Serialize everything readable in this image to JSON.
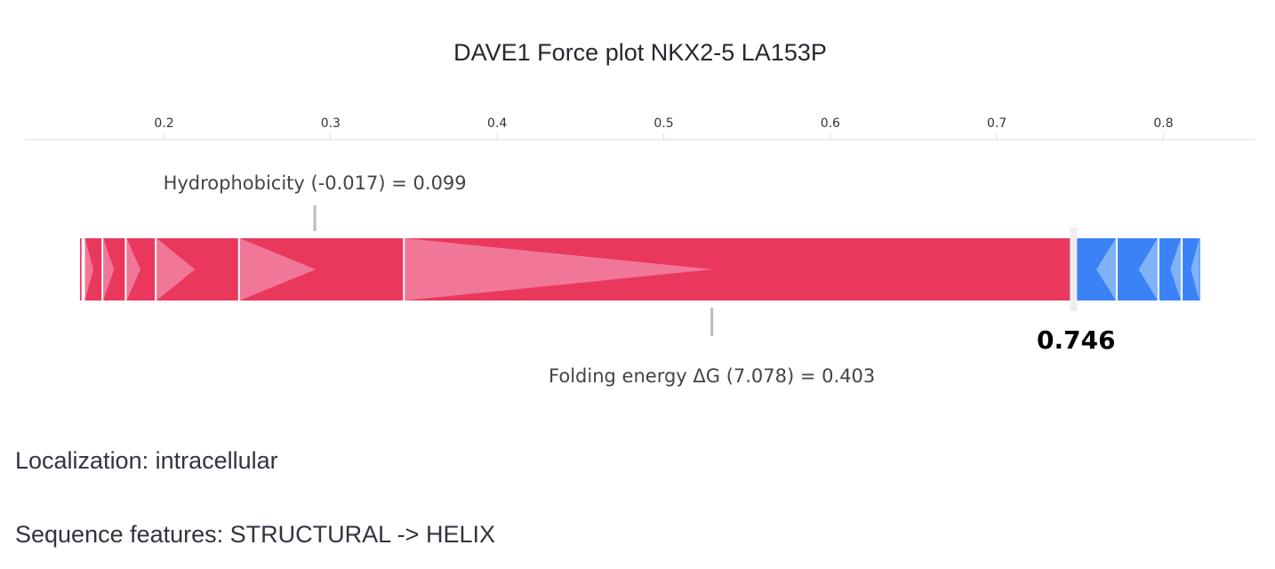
{
  "title": "DAVE1 Force plot NKX2-5 LA153P",
  "info": {
    "localization": "Localization: intracellular",
    "sequence_features": "Sequence features: STRUCTURAL -> HELIX"
  },
  "colors": {
    "positive": "#ea385d",
    "positive_arrow": "#f07798",
    "negative": "#3b82f6",
    "negative_arrow": "#7fb2f7",
    "axis": "#e6e6e6",
    "connector": "#bbbbbb"
  },
  "chart_data": {
    "type": "force",
    "title": "DAVE1 Force plot NKX2-5 LA153P",
    "xlim": [
      0.14,
      0.82
    ],
    "ticks": [
      0.2,
      0.3,
      0.4,
      0.5,
      0.6,
      0.7,
      0.8
    ],
    "tick_labels": [
      "0.2",
      "0.3",
      "0.4",
      "0.5",
      "0.6",
      "0.7",
      "0.8"
    ],
    "output_value": 0.746,
    "output_label": "0.746",
    "positive_segments": [
      {
        "start": 0.149,
        "end": 0.151
      },
      {
        "start": 0.151,
        "end": 0.152
      },
      {
        "start": 0.152,
        "end": 0.163
      },
      {
        "start": 0.163,
        "end": 0.177
      },
      {
        "start": 0.177,
        "end": 0.195
      },
      {
        "start": 0.195,
        "end": 0.245
      },
      {
        "start": 0.245,
        "end": 0.344,
        "annotation": "Hydrophobicity (-0.017) = 0.099",
        "annotation_side": "top"
      },
      {
        "start": 0.344,
        "end": 0.746,
        "annotation": "Folding energy ΔG (7.078) = 0.403",
        "annotation_side": "bottom"
      }
    ],
    "negative_segments": [
      {
        "start": 0.746,
        "end": 0.772
      },
      {
        "start": 0.772,
        "end": 0.797
      },
      {
        "start": 0.797,
        "end": 0.811
      },
      {
        "start": 0.811,
        "end": 0.822
      }
    ]
  }
}
